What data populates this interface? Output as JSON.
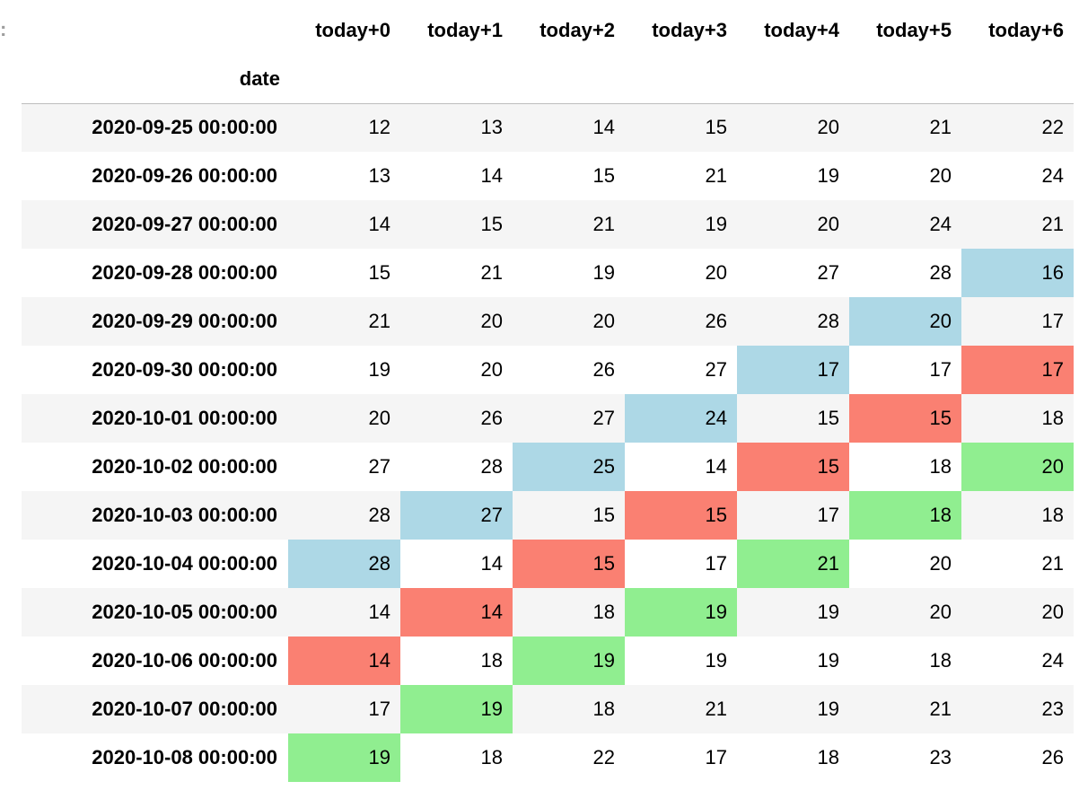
{
  "prompt_marker": ":",
  "index_name": "date",
  "columns": [
    "today+0",
    "today+1",
    "today+2",
    "today+3",
    "today+4",
    "today+5",
    "today+6"
  ],
  "colors": {
    "blue": "#add8e6",
    "red": "#fa8072",
    "green": "#90ee90",
    "stripe": "#f5f5f5"
  },
  "rows": [
    {
      "date": "2020-09-25 00:00:00",
      "values": [
        "12",
        "13",
        "14",
        "15",
        "20",
        "21",
        "22"
      ],
      "highlights": [
        "",
        "",
        "",
        "",
        "",
        "",
        ""
      ]
    },
    {
      "date": "2020-09-26 00:00:00",
      "values": [
        "13",
        "14",
        "15",
        "21",
        "19",
        "20",
        "24"
      ],
      "highlights": [
        "",
        "",
        "",
        "",
        "",
        "",
        ""
      ]
    },
    {
      "date": "2020-09-27 00:00:00",
      "values": [
        "14",
        "15",
        "21",
        "19",
        "20",
        "24",
        "21"
      ],
      "highlights": [
        "",
        "",
        "",
        "",
        "",
        "",
        ""
      ]
    },
    {
      "date": "2020-09-28 00:00:00",
      "values": [
        "15",
        "21",
        "19",
        "20",
        "27",
        "28",
        "16"
      ],
      "highlights": [
        "",
        "",
        "",
        "",
        "",
        "",
        "blue"
      ]
    },
    {
      "date": "2020-09-29 00:00:00",
      "values": [
        "21",
        "20",
        "20",
        "26",
        "28",
        "20",
        "17"
      ],
      "highlights": [
        "",
        "",
        "",
        "",
        "",
        "blue",
        ""
      ]
    },
    {
      "date": "2020-09-30 00:00:00",
      "values": [
        "19",
        "20",
        "26",
        "27",
        "17",
        "17",
        "17"
      ],
      "highlights": [
        "",
        "",
        "",
        "",
        "blue",
        "",
        "red"
      ]
    },
    {
      "date": "2020-10-01 00:00:00",
      "values": [
        "20",
        "26",
        "27",
        "24",
        "15",
        "15",
        "18"
      ],
      "highlights": [
        "",
        "",
        "",
        "blue",
        "",
        "red",
        ""
      ]
    },
    {
      "date": "2020-10-02 00:00:00",
      "values": [
        "27",
        "28",
        "25",
        "14",
        "15",
        "18",
        "20"
      ],
      "highlights": [
        "",
        "",
        "blue",
        "",
        "red",
        "",
        "green"
      ]
    },
    {
      "date": "2020-10-03 00:00:00",
      "values": [
        "28",
        "27",
        "15",
        "15",
        "17",
        "18",
        "18"
      ],
      "highlights": [
        "",
        "blue",
        "",
        "red",
        "",
        "green",
        ""
      ]
    },
    {
      "date": "2020-10-04 00:00:00",
      "values": [
        "28",
        "14",
        "15",
        "17",
        "21",
        "20",
        "21"
      ],
      "highlights": [
        "blue",
        "",
        "red",
        "",
        "green",
        "",
        ""
      ]
    },
    {
      "date": "2020-10-05 00:00:00",
      "values": [
        "14",
        "14",
        "18",
        "19",
        "19",
        "20",
        "20"
      ],
      "highlights": [
        "",
        "red",
        "",
        "green",
        "",
        "",
        ""
      ]
    },
    {
      "date": "2020-10-06 00:00:00",
      "values": [
        "14",
        "18",
        "19",
        "19",
        "19",
        "18",
        "24"
      ],
      "highlights": [
        "red",
        "",
        "green",
        "",
        "",
        "",
        ""
      ]
    },
    {
      "date": "2020-10-07 00:00:00",
      "values": [
        "17",
        "19",
        "18",
        "21",
        "19",
        "21",
        "23"
      ],
      "highlights": [
        "",
        "green",
        "",
        "",
        "",
        "",
        ""
      ]
    },
    {
      "date": "2020-10-08 00:00:00",
      "values": [
        "19",
        "18",
        "22",
        "17",
        "18",
        "23",
        "26"
      ],
      "highlights": [
        "green",
        "",
        "",
        "",
        "",
        "",
        ""
      ]
    }
  ]
}
